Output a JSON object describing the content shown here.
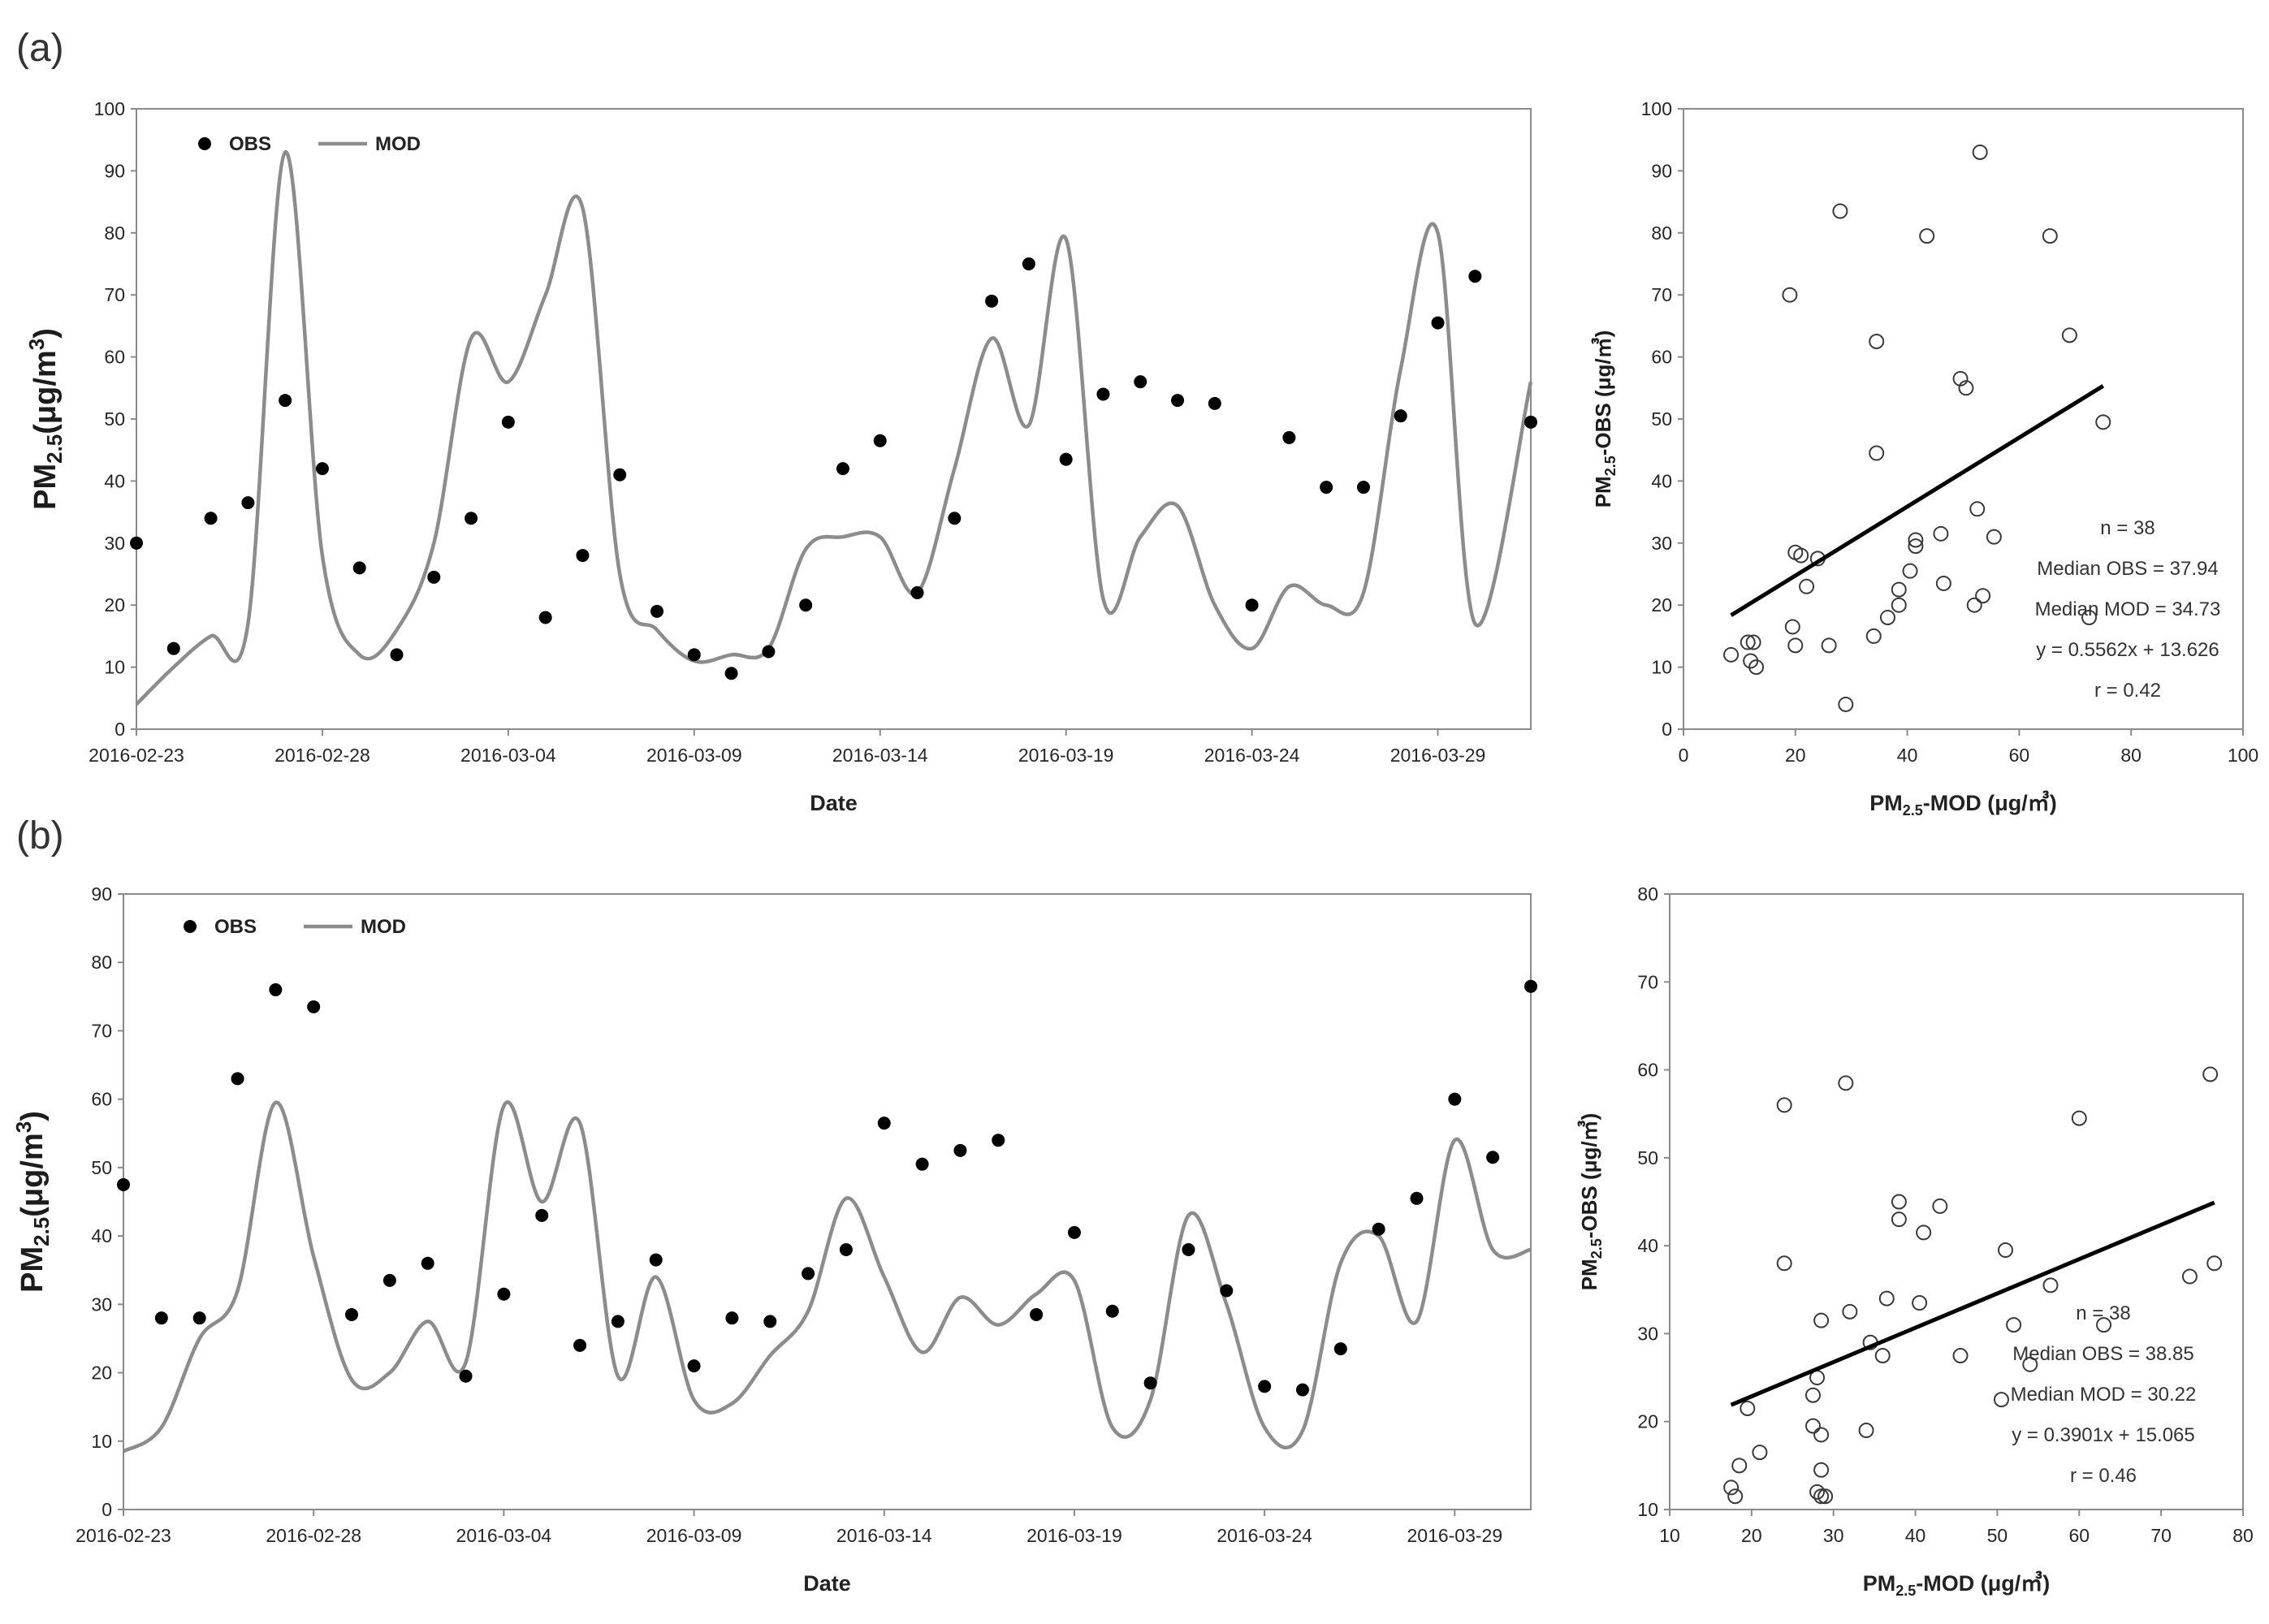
{
  "figure": {
    "label_a": "(a)",
    "label_b": "(b)"
  },
  "chart_data": [
    {
      "id": "a-timeseries",
      "type": "line",
      "panel": "(a)",
      "xlabel": "Date",
      "ylabel_main": "PM",
      "ylabel_sub": "2.5",
      "ylabel_unit": "(μg/m",
      "ylabel_sup": "3",
      "ylabel_close": ")",
      "ylim": [
        0,
        100
      ],
      "yticks": [
        0,
        10,
        20,
        30,
        40,
        50,
        60,
        70,
        80,
        90,
        100
      ],
      "xticks": [
        "2016-02-23",
        "2016-02-28",
        "2016-03-04",
        "2016-03-09",
        "2016-03-14",
        "2016-03-19",
        "2016-03-24",
        "2016-03-29"
      ],
      "x_days": [
        0,
        5,
        10,
        15,
        20,
        25,
        30,
        35
      ],
      "x_range": [
        0,
        37.5
      ],
      "legend": {
        "obs": "OBS",
        "mod": "MOD"
      },
      "obs_x": [
        0,
        1,
        2,
        3,
        4,
        5,
        6,
        7,
        8,
        9,
        10,
        11,
        12,
        13,
        14,
        15,
        16,
        17,
        18,
        19,
        20,
        21,
        22,
        23,
        24,
        25,
        26,
        27,
        28,
        29,
        30,
        31,
        32,
        33,
        34,
        35,
        36,
        37.5
      ],
      "obs": [
        30,
        13,
        34,
        36.5,
        53,
        42,
        26,
        12,
        24.5,
        34,
        49.5,
        18,
        28,
        41,
        19,
        12,
        9,
        12.5,
        20,
        42,
        46.5,
        22,
        34,
        69,
        75,
        43.5,
        54,
        56,
        53,
        52.5,
        20,
        47,
        39,
        39,
        50.5,
        65.5,
        73,
        49.5
      ],
      "mod_x": [
        0,
        1,
        2,
        3,
        4,
        5,
        6,
        7,
        8,
        9,
        10,
        11,
        12,
        13,
        14,
        15,
        16,
        17,
        18,
        19,
        20,
        21,
        22,
        23,
        24,
        25,
        26,
        27,
        28,
        29,
        30,
        31,
        32,
        33,
        34,
        35,
        36,
        37.5
      ],
      "mod": [
        4,
        10,
        15,
        17,
        93,
        28,
        12,
        16,
        30,
        63,
        56,
        70,
        84,
        25,
        16,
        11,
        12,
        13,
        29,
        31,
        31,
        22,
        42,
        63,
        49,
        79,
        21,
        31,
        36,
        20,
        13,
        23,
        20,
        22,
        58,
        80,
        17,
        56
      ]
    },
    {
      "id": "a-scatter",
      "type": "scatter",
      "xlabel_main": "PM",
      "xlabel_sub": "2.5",
      "xlabel_rest": "-MOD (μg/㎥)",
      "ylabel_main": "PM",
      "ylabel_sub": "2.5",
      "ylabel_rest": "-OBS (μg/㎥)",
      "xlim": [
        0,
        100
      ],
      "ylim": [
        0,
        100
      ],
      "xticks": [
        0,
        20,
        40,
        60,
        80,
        100
      ],
      "yticks": [
        0,
        10,
        20,
        30,
        40,
        50,
        60,
        70,
        80,
        90,
        100
      ],
      "points": [
        [
          8.5,
          12
        ],
        [
          11.5,
          14
        ],
        [
          12.5,
          14
        ],
        [
          12,
          11
        ],
        [
          13,
          10
        ],
        [
          19,
          70
        ],
        [
          19.5,
          16.5
        ],
        [
          20,
          13.5
        ],
        [
          20,
          28.5
        ],
        [
          22,
          23
        ],
        [
          24,
          27.5
        ],
        [
          26,
          13.5
        ],
        [
          28,
          83.5
        ],
        [
          29,
          4
        ],
        [
          34,
          15
        ],
        [
          34.5,
          62.5
        ],
        [
          34.5,
          44.5
        ],
        [
          36.5,
          18
        ],
        [
          38.5,
          20
        ],
        [
          38.5,
          22.5
        ],
        [
          40.5,
          25.5
        ],
        [
          41.5,
          30.5
        ],
        [
          41.5,
          29.5
        ],
        [
          43.5,
          79.5
        ],
        [
          46,
          31.5
        ],
        [
          46.5,
          23.5
        ],
        [
          49.5,
          56.5
        ],
        [
          50.5,
          55
        ],
        [
          52,
          20
        ],
        [
          52.5,
          35.5
        ],
        [
          53,
          93
        ],
        [
          53.5,
          21.5
        ],
        [
          55.5,
          31
        ],
        [
          65.5,
          79.5
        ],
        [
          69,
          63.5
        ],
        [
          72.5,
          18
        ],
        [
          75,
          49.5
        ],
        [
          21,
          28
        ]
      ],
      "fit": {
        "x": [
          8.5,
          75
        ],
        "slope": 0.5562,
        "intercept": 13.626
      },
      "stats": [
        "n = 38",
        "Median OBS = 37.94",
        "Median MOD = 34.73",
        "y = 0.5562x + 13.626",
        "r = 0.42"
      ]
    },
    {
      "id": "b-timeseries",
      "type": "line",
      "panel": "(b)",
      "xlabel": "Date",
      "ylabel_main": "PM",
      "ylabel_sub": "2.5",
      "ylabel_unit": "(μg/m",
      "ylabel_sup": "3",
      "ylabel_close": ")",
      "ylim": [
        0,
        90
      ],
      "yticks": [
        0,
        10,
        20,
        30,
        40,
        50,
        60,
        70,
        80,
        90
      ],
      "xticks": [
        "2016-02-23",
        "2016-02-28",
        "2016-03-04",
        "2016-03-09",
        "2016-03-14",
        "2016-03-19",
        "2016-03-24",
        "2016-03-29"
      ],
      "x_days": [
        0,
        5,
        10,
        15,
        20,
        25,
        30,
        35
      ],
      "x_range": [
        0,
        37
      ],
      "legend": {
        "obs": "OBS",
        "mod": "MOD"
      },
      "obs_x": [
        0,
        1,
        2,
        3,
        4,
        5,
        6,
        7,
        8,
        9,
        10,
        11,
        12,
        13,
        14,
        15,
        16,
        17,
        18,
        19,
        20,
        21,
        22,
        23,
        24,
        25,
        26,
        27,
        28,
        29,
        30,
        31,
        32,
        33,
        34,
        35,
        36,
        37
      ],
      "obs": [
        47.5,
        28,
        28,
        63,
        76,
        73.5,
        28.5,
        33.5,
        36,
        19.5,
        31.5,
        43,
        24,
        27.5,
        36.5,
        21,
        28,
        27.5,
        34.5,
        38,
        56.5,
        50.5,
        52.5,
        54,
        28.5,
        40.5,
        29,
        18.5,
        38,
        32,
        18,
        17.5,
        23.5,
        41,
        45.5,
        60,
        51.5,
        76.5
      ],
      "mod_x": [
        0,
        1,
        2,
        3,
        4,
        5,
        6,
        7,
        8,
        9,
        10,
        11,
        12,
        13,
        14,
        15,
        16,
        17,
        18,
        19,
        20,
        21,
        22,
        23,
        24,
        25,
        26,
        27,
        28,
        29,
        30,
        31,
        32,
        33,
        34,
        35,
        36,
        37
      ],
      "mod": [
        8.5,
        12,
        25,
        32,
        59.5,
        37,
        19,
        20,
        27.5,
        21.5,
        59,
        45,
        56.5,
        19.5,
        34,
        16,
        15.5,
        22.5,
        29,
        45.5,
        34,
        23,
        31,
        27,
        31.5,
        33.5,
        12,
        16,
        43,
        30,
        12,
        11.5,
        36,
        40,
        27.5,
        54,
        38,
        38
      ]
    },
    {
      "id": "b-scatter",
      "type": "scatter",
      "xlabel_main": "PM",
      "xlabel_sub": "2.5",
      "xlabel_rest": "-MOD (μg/㎥)",
      "ylabel_main": "PM",
      "ylabel_sub": "2.5",
      "ylabel_rest": "-OBS (μg/㎥)",
      "xlim": [
        10,
        80
      ],
      "ylim": [
        10,
        80
      ],
      "xticks": [
        10,
        20,
        30,
        40,
        50,
        60,
        70,
        80
      ],
      "yticks": [
        10,
        20,
        30,
        40,
        50,
        60,
        70,
        80
      ],
      "points": [
        [
          17.5,
          12.5
        ],
        [
          18,
          11.5
        ],
        [
          18.5,
          15
        ],
        [
          19.5,
          21.5
        ],
        [
          21,
          16.5
        ],
        [
          24,
          56
        ],
        [
          24,
          38
        ],
        [
          27.5,
          23
        ],
        [
          27.5,
          19.5
        ],
        [
          28,
          25
        ],
        [
          28.5,
          18.5
        ],
        [
          28,
          12
        ],
        [
          28.5,
          14.5
        ],
        [
          28.5,
          11.5
        ],
        [
          28.5,
          31.5
        ],
        [
          31.5,
          58.5
        ],
        [
          32,
          32.5
        ],
        [
          34,
          19
        ],
        [
          34.5,
          29
        ],
        [
          36,
          27.5
        ],
        [
          36.5,
          34
        ],
        [
          38,
          45
        ],
        [
          38,
          43
        ],
        [
          40.5,
          33.5
        ],
        [
          41,
          41.5
        ],
        [
          43,
          44.5
        ],
        [
          45.5,
          27.5
        ],
        [
          51,
          39.5
        ],
        [
          52,
          31
        ],
        [
          54,
          26.5
        ],
        [
          56.5,
          35.5
        ],
        [
          60,
          54.5
        ],
        [
          63,
          31
        ],
        [
          73.5,
          36.5
        ],
        [
          76,
          59.5
        ],
        [
          76.5,
          38
        ],
        [
          50.5,
          22.5
        ],
        [
          29,
          11.5
        ]
      ],
      "fit": {
        "x": [
          17.5,
          76.5
        ],
        "slope": 0.3901,
        "intercept": 15.065
      },
      "stats": [
        "n = 38",
        "Median OBS = 38.85",
        "Median MOD = 30.22",
        "y = 0.3901x + 15.065",
        "r = 0.46"
      ]
    }
  ]
}
